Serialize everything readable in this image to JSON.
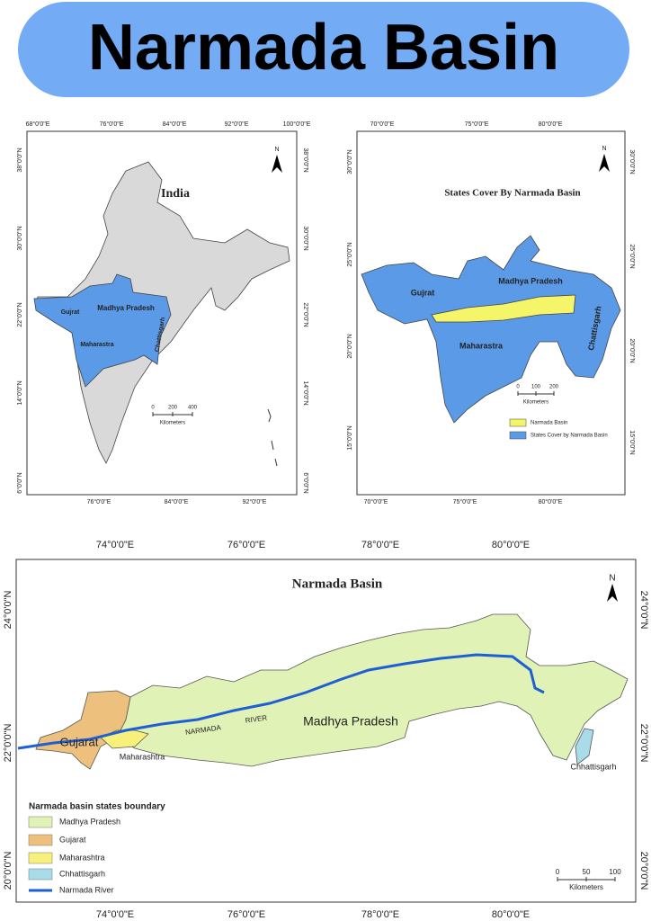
{
  "header": {
    "title": "Narmada Basin"
  },
  "maps": [
    {
      "title": "India",
      "lon_top": [
        "68°0'0\"E",
        "76°0'0\"E",
        "84°0'0\"E",
        "92°0'0\"E",
        "100°0'0\"E"
      ],
      "lon_bottom": [
        "76°0'0\"E",
        "84°0'0\"E",
        "92°0'0\"E"
      ],
      "lat_left": [
        "38°0'0\"N",
        "30°0'0\"N",
        "22°0'0\"N",
        "14°0'0\"N",
        "6°0'0\"N"
      ],
      "lat_right": [
        "38°0'0\"N",
        "30°0'0\"N",
        "22°0'0\"N",
        "14°0'0\"N",
        "6°0'0\"N"
      ],
      "north": "N",
      "labels": [
        "Gujrat",
        "Madhya Pradesh",
        "Maharastra",
        "Chattisgarh"
      ],
      "scale": {
        "ticks": [
          "0",
          "200",
          "400"
        ],
        "unit": "Kilometers"
      }
    },
    {
      "title": "States Cover By Narmada Basin",
      "lon_top": [
        "70°0'0\"E",
        "75°0'0\"E",
        "80°0'0\"E"
      ],
      "lon_bottom": [
        "70°0'0\"E",
        "75°0'0\"E",
        "80°0'0\"E"
      ],
      "lat_left": [
        "30°0'0\"N",
        "25°0'0\"N",
        "20°0'0\"N",
        "15°0'0\"N"
      ],
      "lat_right": [
        "30°0'0\"N",
        "25°0'0\"N",
        "20°0'0\"N",
        "15°0'0\"N"
      ],
      "north": "N",
      "labels": [
        "Gujrat",
        "Madhya Pradesh",
        "Maharastra",
        "Chattisgarh"
      ],
      "scale": {
        "ticks": [
          "0",
          "100",
          "200"
        ],
        "unit": "Kilometers"
      },
      "legend": [
        "Narmada Basin",
        "States Cover by Narmada Basin"
      ]
    },
    {
      "title": "Narmada Basin",
      "lon_top": [
        "74°0'0\"E",
        "76°0'0\"E",
        "78°0'0\"E",
        "80°0'0\"E"
      ],
      "lon_bottom": [
        "74°0'0\"E",
        "76°0'0\"E",
        "78°0'0\"E",
        "80°0'0\"E"
      ],
      "lat_left": [
        "24°0'0\"N",
        "22°0'0\"N",
        "20°0'0\"N"
      ],
      "lat_right": [
        "24°0'0\"N",
        "22°0'0\"N",
        "20°0'0\"N"
      ],
      "north": "N",
      "labels": [
        "Madhya Pradesh",
        "Gujarat",
        "Maharashtra",
        "Chhattisgarh"
      ],
      "river_labels": [
        "NARMADA",
        "RIVER"
      ],
      "scale": {
        "ticks": [
          "0",
          "50",
          "100"
        ],
        "unit": "Kilometers"
      },
      "legend_title": "Narmada basin states boundary",
      "legend": [
        "Madhya Pradesh",
        "Gujarat",
        "Maharashtra",
        "Chhattisgarh",
        "Narmada River"
      ]
    }
  ]
}
